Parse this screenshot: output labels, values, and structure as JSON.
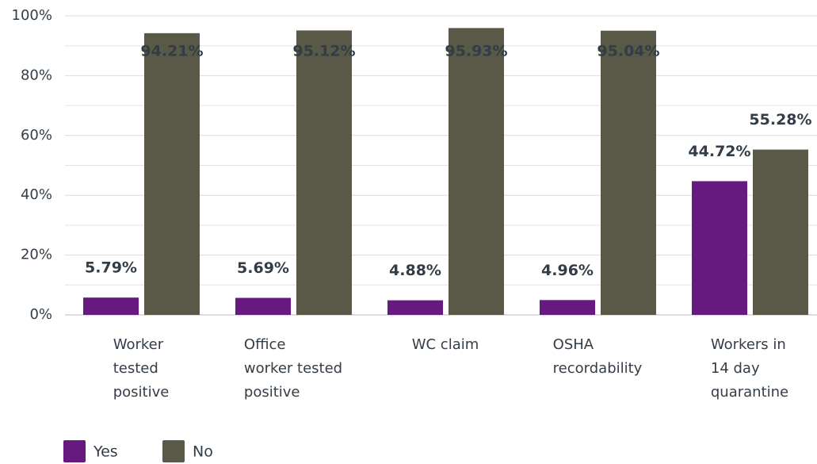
{
  "chart_data": {
    "type": "bar",
    "categories": [
      "Worker\ntested\npositive",
      "Office\nworker tested\npositive",
      "WC claim",
      "OSHA\nrecordability",
      "Workers in\n14 day\nquarantine"
    ],
    "series": [
      {
        "name": "Yes",
        "color": "#661a80",
        "values": [
          5.79,
          5.69,
          4.88,
          4.96,
          44.72
        ],
        "value_labels": [
          "5.79%",
          "5.69%",
          "4.88%",
          "4.96%",
          "44.72%"
        ]
      },
      {
        "name": "No",
        "color": "#5a5847",
        "values": [
          94.21,
          95.12,
          95.93,
          95.04,
          55.28
        ],
        "value_labels": [
          "94.21%",
          "95.12%",
          "95.93%",
          "95.04%",
          "55.28%"
        ]
      }
    ],
    "ylim": [
      0,
      100
    ],
    "yticks": [
      {
        "value": 0,
        "label": "0%"
      },
      {
        "value": 20,
        "label": "20%"
      },
      {
        "value": 40,
        "label": "40%"
      },
      {
        "value": 60,
        "label": "60%"
      },
      {
        "value": 80,
        "label": "80%"
      },
      {
        "value": 100,
        "label": "100%"
      }
    ],
    "minor_yticks": [
      10,
      30,
      50,
      70,
      90
    ],
    "grid": true,
    "legend": "bottom-left"
  }
}
